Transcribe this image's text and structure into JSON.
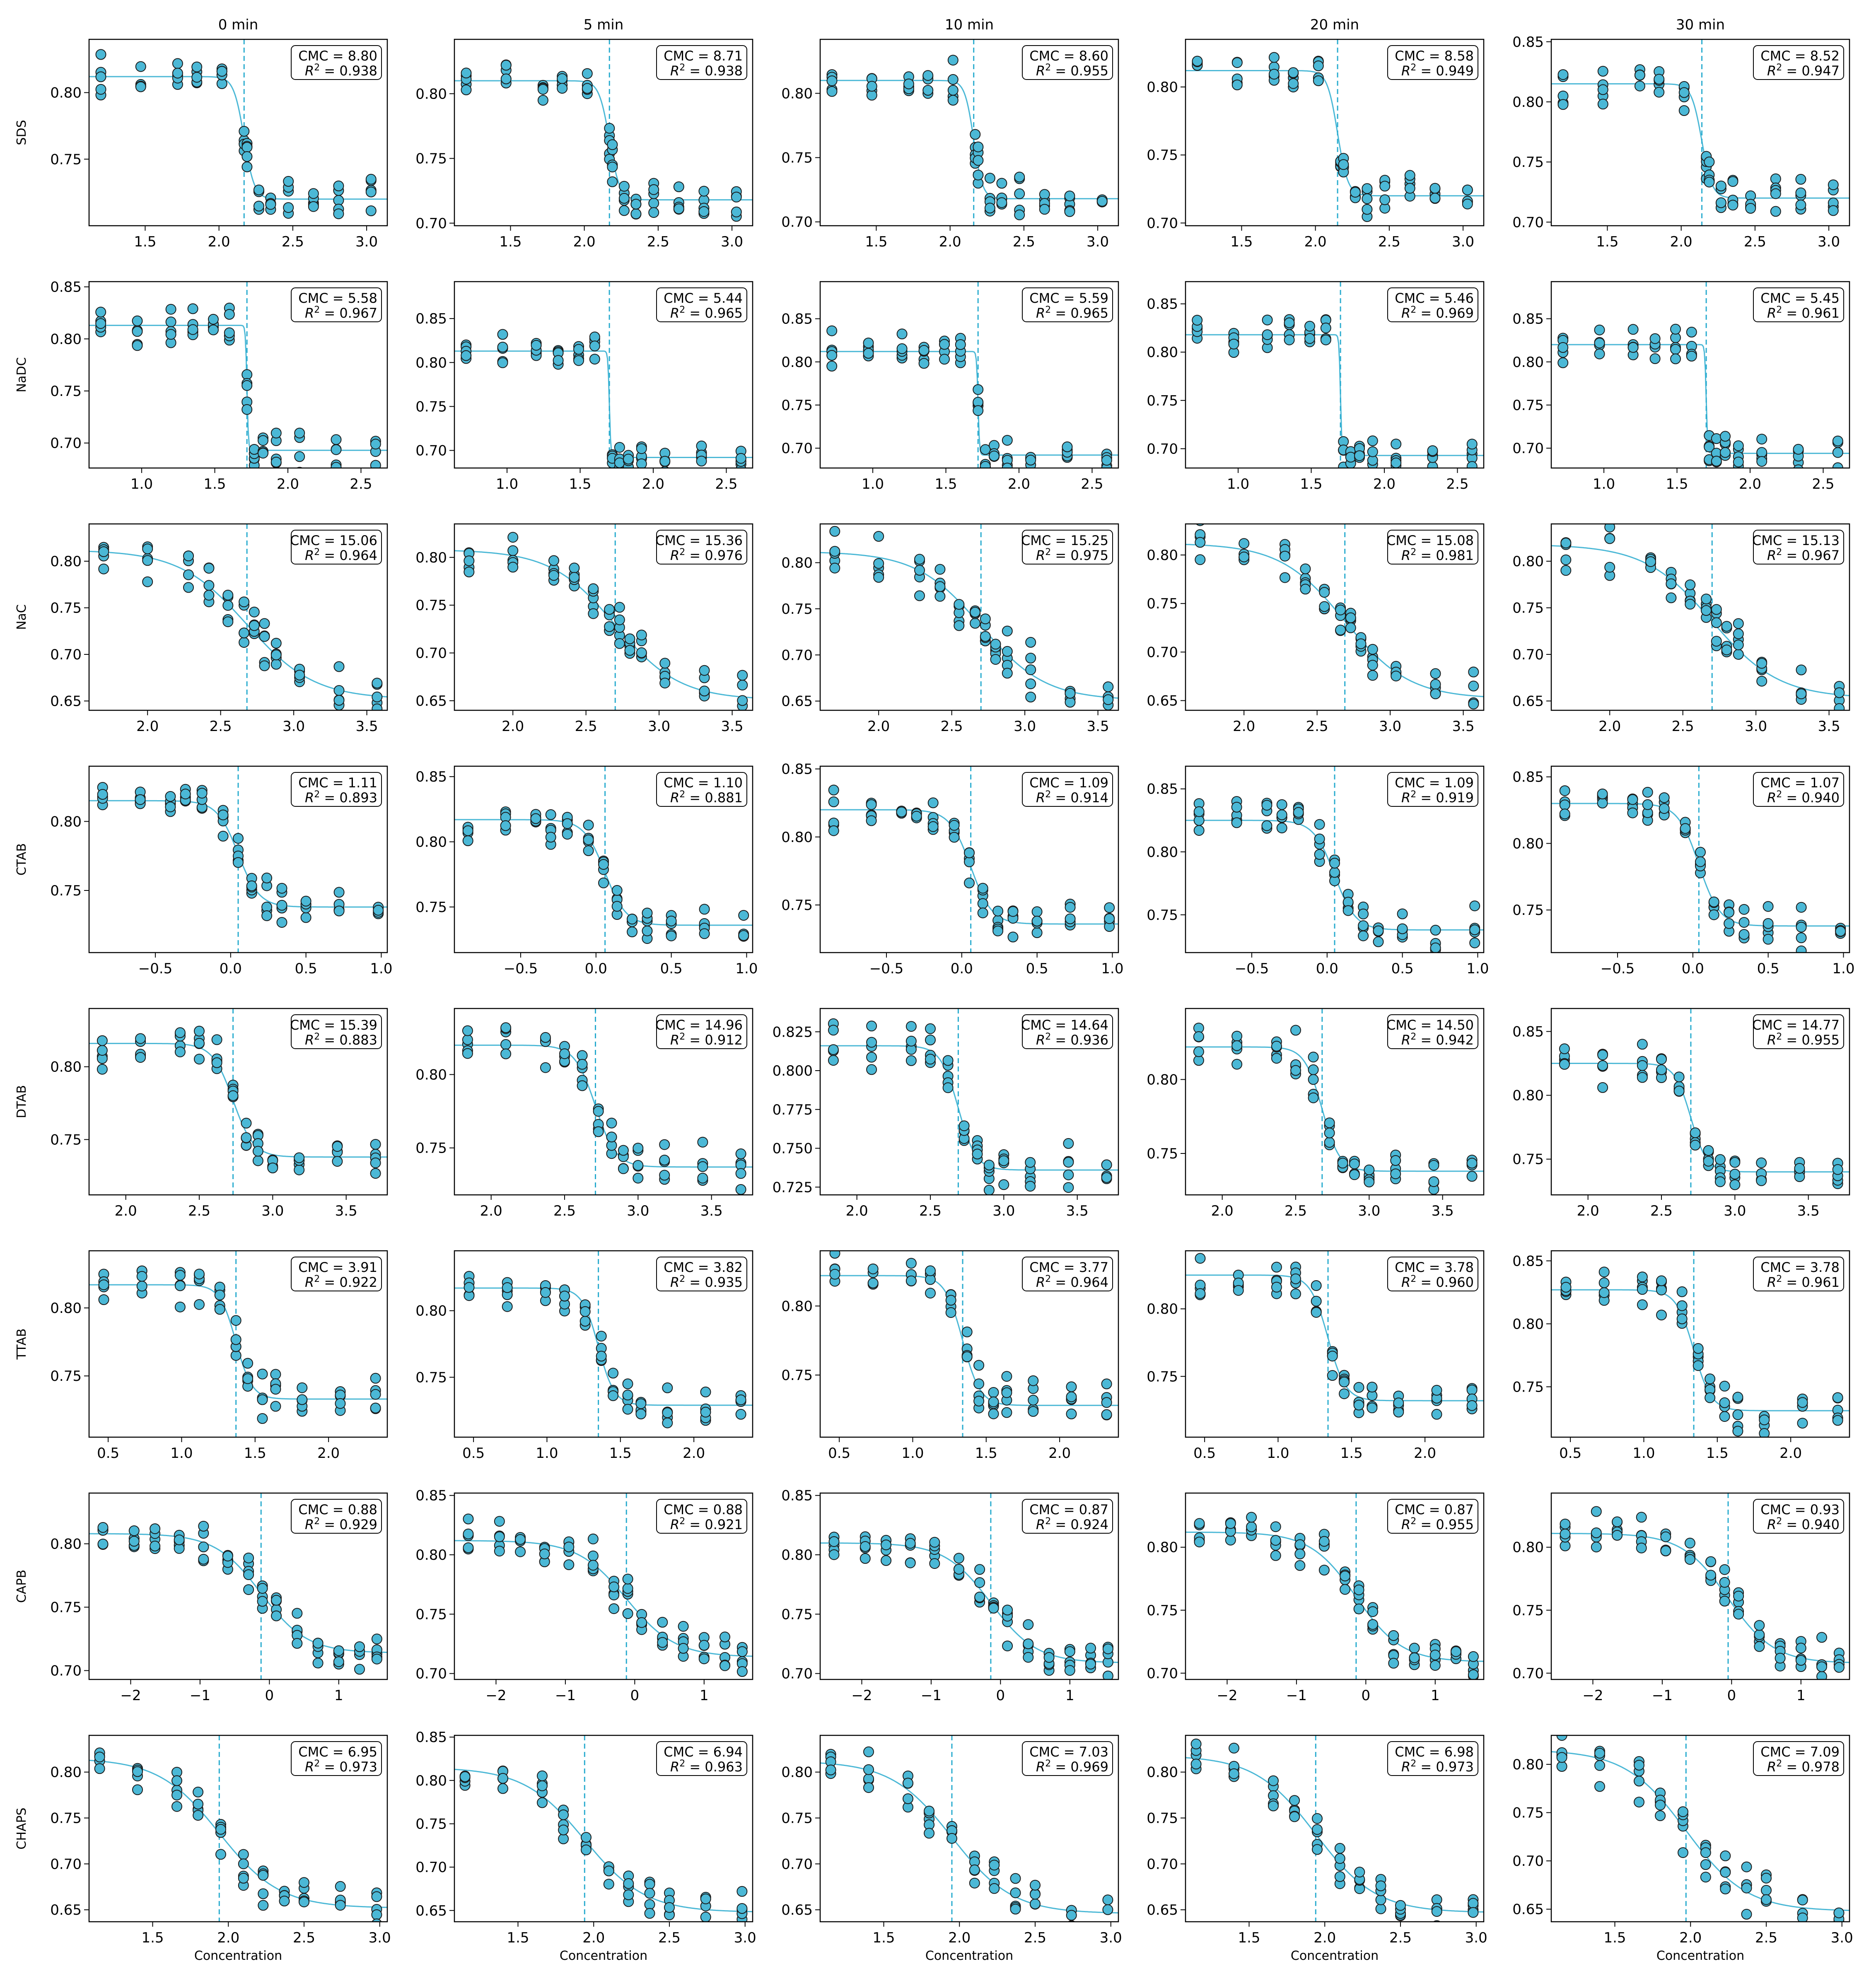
{
  "figure": {
    "col_titles": [
      "0 min",
      "5 min",
      "10 min",
      "20 min",
      "30 min"
    ],
    "row_labels": [
      "SDS",
      "NaDC",
      "NaC",
      "CTAB",
      "DTAB",
      "TTAB",
      "CAPB",
      "CHAPS"
    ],
    "xlabel": "Concentration",
    "colors": {
      "point": "#4bb8d6",
      "edge": "#1a1a1a",
      "fit": "#4bb8d6",
      "cmc_line": "#2aaccf"
    }
  },
  "chart_data": {
    "type": "scatter",
    "rows": [
      {
        "name": "SDS",
        "xlim": [
          1.12,
          3.14
        ],
        "xticks": [
          "1.5",
          "2.0",
          "2.5",
          "3.0"
        ],
        "x": [
          1.2,
          1.47,
          1.72,
          1.85,
          2.02,
          2.17,
          2.19,
          2.27,
          2.35,
          2.47,
          2.64,
          2.81,
          3.03
        ],
        "panels": [
          {
            "cmc": "8.80",
            "r2": "0.938",
            "ylim": [
              0.7,
              0.84
            ],
            "yticks": [
              "0.75",
              "0.80"
            ],
            "hi": 0.812,
            "lo": 0.72,
            "x0": 2.17,
            "w": 0.035
          },
          {
            "cmc": "8.71",
            "r2": "0.938",
            "ylim": [
              0.698,
              0.842
            ],
            "yticks": [
              "0.70",
              "0.75",
              "0.80"
            ],
            "hi": 0.81,
            "lo": 0.718,
            "x0": 2.17,
            "w": 0.035
          },
          {
            "cmc": "8.60",
            "r2": "0.955",
            "ylim": [
              0.697,
              0.842
            ],
            "yticks": [
              "0.70",
              "0.75",
              "0.80"
            ],
            "hi": 0.81,
            "lo": 0.718,
            "x0": 2.16,
            "w": 0.03
          },
          {
            "cmc": "8.58",
            "r2": "0.949",
            "ylim": [
              0.698,
              0.835
            ],
            "yticks": [
              "0.70",
              "0.75",
              "0.80"
            ],
            "hi": 0.812,
            "lo": 0.72,
            "x0": 2.15,
            "w": 0.035
          },
          {
            "cmc": "8.52",
            "r2": "0.947",
            "ylim": [
              0.697,
              0.852
            ],
            "yticks": [
              "0.70",
              "0.75",
              "0.80",
              "0.85"
            ],
            "hi": 0.815,
            "lo": 0.72,
            "x0": 2.14,
            "w": 0.035
          }
        ]
      },
      {
        "name": "NaDC",
        "xlim": [
          0.64,
          2.68
        ],
        "xticks": [
          "1.0",
          "1.5",
          "2.0",
          "2.5"
        ],
        "x": [
          0.72,
          0.97,
          1.2,
          1.35,
          1.49,
          1.6,
          1.72,
          1.77,
          1.83,
          1.92,
          2.08,
          2.33,
          2.6
        ],
        "panels": [
          {
            "cmc": "5.58",
            "r2": "0.967",
            "ylim": [
              0.676,
              0.855
            ],
            "yticks": [
              "0.70",
              "0.75",
              "0.80",
              "0.85"
            ],
            "hi": 0.813,
            "lo": 0.693,
            "x0": 1.72,
            "w": 0.005
          },
          {
            "cmc": "5.44",
            "r2": "0.965",
            "ylim": [
              0.68,
              0.892
            ],
            "yticks": [
              "0.70",
              "0.75",
              "0.80",
              "0.85"
            ],
            "hi": 0.813,
            "lo": 0.692,
            "x0": 1.7,
            "w": 0.005
          },
          {
            "cmc": "5.59",
            "r2": "0.965",
            "ylim": [
              0.677,
              0.893
            ],
            "yticks": [
              "0.70",
              "0.75",
              "0.80",
              "0.85"
            ],
            "hi": 0.812,
            "lo": 0.692,
            "x0": 1.72,
            "w": 0.005
          },
          {
            "cmc": "5.46",
            "r2": "0.969",
            "ylim": [
              0.68,
              0.873
            ],
            "yticks": [
              "0.70",
              "0.75",
              "0.80",
              "0.85"
            ],
            "hi": 0.818,
            "lo": 0.693,
            "x0": 1.7,
            "w": 0.005
          },
          {
            "cmc": "5.45",
            "r2": "0.961",
            "ylim": [
              0.677,
              0.893
            ],
            "yticks": [
              "0.70",
              "0.75",
              "0.80",
              "0.85"
            ],
            "hi": 0.82,
            "lo": 0.694,
            "x0": 1.7,
            "w": 0.005
          }
        ]
      },
      {
        "name": "NaC",
        "xlim": [
          1.6,
          3.64
        ],
        "xticks": [
          "2.0",
          "2.5",
          "3.0",
          "3.5"
        ],
        "x": [
          1.7,
          2.0,
          2.28,
          2.42,
          2.55,
          2.66,
          2.73,
          2.8,
          2.88,
          3.04,
          3.31,
          3.57
        ],
        "panels": [
          {
            "cmc": "15.06",
            "r2": "0.964",
            "ylim": [
              0.64,
              0.84
            ],
            "yticks": [
              "0.65",
              "0.70",
              "0.75",
              "0.80"
            ],
            "hi": 0.812,
            "lo": 0.652,
            "x0": 2.68,
            "w": 0.23
          },
          {
            "cmc": "15.36",
            "r2": "0.976",
            "ylim": [
              0.64,
              0.835
            ],
            "yticks": [
              "0.65",
              "0.70",
              "0.75",
              "0.80"
            ],
            "hi": 0.808,
            "lo": 0.651,
            "x0": 2.7,
            "w": 0.22
          },
          {
            "cmc": "15.25",
            "r2": "0.975",
            "ylim": [
              0.64,
              0.842
            ],
            "yticks": [
              "0.65",
              "0.70",
              "0.75",
              "0.80"
            ],
            "hi": 0.812,
            "lo": 0.651,
            "x0": 2.7,
            "w": 0.22
          },
          {
            "cmc": "15.08",
            "r2": "0.981",
            "ylim": [
              0.64,
              0.832
            ],
            "yticks": [
              "0.65",
              "0.70",
              "0.75",
              "0.80"
            ],
            "hi": 0.812,
            "lo": 0.652,
            "x0": 2.69,
            "w": 0.22
          },
          {
            "cmc": "15.13",
            "r2": "0.967",
            "ylim": [
              0.64,
              0.84
            ],
            "yticks": [
              "0.65",
              "0.70",
              "0.75",
              "0.80"
            ],
            "hi": 0.818,
            "lo": 0.653,
            "x0": 2.7,
            "w": 0.23
          }
        ]
      },
      {
        "name": "CTAB",
        "xlim": [
          -0.94,
          1.04
        ],
        "xticks": [
          "−0.5",
          "0.0",
          "0.5",
          "1.0"
        ],
        "x": [
          -0.85,
          -0.6,
          -0.4,
          -0.3,
          -0.19,
          -0.05,
          0.05,
          0.14,
          0.24,
          0.34,
          0.5,
          0.72,
          0.98
        ],
        "panels": [
          {
            "cmc": "1.11",
            "r2": "0.893",
            "ylim": [
              0.705,
              0.84
            ],
            "yticks": [
              "0.75",
              "0.80"
            ],
            "hi": 0.815,
            "lo": 0.738,
            "x0": 0.05,
            "w": 0.07
          },
          {
            "cmc": "1.10",
            "r2": "0.881",
            "ylim": [
              0.715,
              0.858
            ],
            "yticks": [
              "0.75",
              "0.80",
              "0.85"
            ],
            "hi": 0.817,
            "lo": 0.736,
            "x0": 0.06,
            "w": 0.07
          },
          {
            "cmc": "1.09",
            "r2": "0.914",
            "ylim": [
              0.715,
              0.852
            ],
            "yticks": [
              "0.75",
              "0.80",
              "0.85"
            ],
            "hi": 0.82,
            "lo": 0.736,
            "x0": 0.06,
            "w": 0.07
          },
          {
            "cmc": "1.09",
            "r2": "0.919",
            "ylim": [
              0.72,
              0.868
            ],
            "yticks": [
              "0.75",
              "0.80",
              "0.85"
            ],
            "hi": 0.825,
            "lo": 0.738,
            "x0": 0.05,
            "w": 0.07
          },
          {
            "cmc": "1.07",
            "r2": "0.940",
            "ylim": [
              0.718,
              0.858
            ],
            "yticks": [
              "0.75",
              "0.80",
              "0.85"
            ],
            "hi": 0.83,
            "lo": 0.738,
            "x0": 0.04,
            "w": 0.07
          }
        ]
      },
      {
        "name": "DTAB",
        "xlim": [
          1.75,
          3.78
        ],
        "xticks": [
          "2.0",
          "2.5",
          "3.0",
          "3.5"
        ],
        "x": [
          1.84,
          2.1,
          2.37,
          2.5,
          2.62,
          2.73,
          2.82,
          2.9,
          3.0,
          3.18,
          3.44,
          3.7
        ],
        "panels": [
          {
            "cmc": "15.39",
            "r2": "0.883",
            "ylim": [
              0.712,
              0.84
            ],
            "yticks": [
              "0.75",
              "0.80"
            ],
            "hi": 0.816,
            "lo": 0.738,
            "x0": 2.73,
            "w": 0.07
          },
          {
            "cmc": "14.96",
            "r2": "0.912",
            "ylim": [
              0.718,
              0.845
            ],
            "yticks": [
              "0.75",
              "0.80"
            ],
            "hi": 0.82,
            "lo": 0.737,
            "x0": 2.71,
            "w": 0.07
          },
          {
            "cmc": "14.64",
            "r2": "0.936",
            "ylim": [
              0.72,
              0.84
            ],
            "yticks": [
              "0.725",
              "0.750",
              "0.775",
              "0.800",
              "0.825"
            ],
            "hi": 0.816,
            "lo": 0.736,
            "x0": 2.69,
            "w": 0.06
          },
          {
            "cmc": "14.50",
            "r2": "0.942",
            "ylim": [
              0.722,
              0.848
            ],
            "yticks": [
              "0.75",
              "0.80"
            ],
            "hi": 0.822,
            "lo": 0.738,
            "x0": 2.68,
            "w": 0.06
          },
          {
            "cmc": "14.77",
            "r2": "0.955",
            "ylim": [
              0.722,
              0.868
            ],
            "yticks": [
              "0.75",
              "0.80",
              "0.85"
            ],
            "hi": 0.825,
            "lo": 0.74,
            "x0": 2.7,
            "w": 0.055
          }
        ]
      },
      {
        "name": "TTAB",
        "xlim": [
          0.37,
          2.4
        ],
        "xticks": [
          "0.5",
          "1.0",
          "1.5",
          "2.0"
        ],
        "x": [
          0.47,
          0.73,
          0.99,
          1.12,
          1.26,
          1.37,
          1.45,
          1.55,
          1.64,
          1.82,
          2.08,
          2.32
        ],
        "panels": [
          {
            "cmc": "3.91",
            "r2": "0.922",
            "ylim": [
              0.705,
              0.842
            ],
            "yticks": [
              "0.75",
              "0.80"
            ],
            "hi": 0.817,
            "lo": 0.733,
            "x0": 1.37,
            "w": 0.055
          },
          {
            "cmc": "3.82",
            "r2": "0.935",
            "ylim": [
              0.705,
              0.845
            ],
            "yticks": [
              "0.75",
              "0.80"
            ],
            "hi": 0.817,
            "lo": 0.729,
            "x0": 1.35,
            "w": 0.055
          },
          {
            "cmc": "3.77",
            "r2": "0.964",
            "ylim": [
              0.705,
              0.84
            ],
            "yticks": [
              "0.75",
              "0.80"
            ],
            "hi": 0.822,
            "lo": 0.728,
            "x0": 1.34,
            "w": 0.06
          },
          {
            "cmc": "3.78",
            "r2": "0.960",
            "ylim": [
              0.705,
              0.843
            ],
            "yticks": [
              "0.75",
              "0.80"
            ],
            "hi": 0.825,
            "lo": 0.732,
            "x0": 1.34,
            "w": 0.06
          },
          {
            "cmc": "3.78",
            "r2": "0.961",
            "ylim": [
              0.71,
              0.858
            ],
            "yticks": [
              "0.75",
              "0.80",
              "0.85"
            ],
            "hi": 0.827,
            "lo": 0.731,
            "x0": 1.34,
            "w": 0.06
          }
        ]
      },
      {
        "name": "CAPB",
        "xlim": [
          -2.6,
          1.7
        ],
        "xticks": [
          "−2",
          "−1",
          "0",
          "1"
        ],
        "x": [
          -2.4,
          -1.95,
          -1.65,
          -1.3,
          -0.95,
          -0.6,
          -0.3,
          -0.1,
          0.1,
          0.4,
          0.7,
          1.0,
          1.3,
          1.55
        ],
        "panels": [
          {
            "cmc": "0.88",
            "r2": "0.929",
            "ylim": [
              0.693,
              0.84
            ],
            "yticks": [
              "0.70",
              "0.75",
              "0.80"
            ],
            "hi": 0.808,
            "lo": 0.714,
            "x0": -0.12,
            "w": 0.33
          },
          {
            "cmc": "0.88",
            "r2": "0.921",
            "ylim": [
              0.695,
              0.852
            ],
            "yticks": [
              "0.70",
              "0.75",
              "0.80",
              "0.85"
            ],
            "hi": 0.812,
            "lo": 0.714,
            "x0": -0.12,
            "w": 0.35
          },
          {
            "cmc": "0.87",
            "r2": "0.924",
            "ylim": [
              0.695,
              0.852
            ],
            "yticks": [
              "0.70",
              "0.75",
              "0.80",
              "0.85"
            ],
            "hi": 0.81,
            "lo": 0.709,
            "x0": -0.14,
            "w": 0.33
          },
          {
            "cmc": "0.87",
            "r2": "0.955",
            "ylim": [
              0.695,
              0.843
            ],
            "yticks": [
              "0.70",
              "0.75",
              "0.80"
            ],
            "hi": 0.812,
            "lo": 0.709,
            "x0": -0.14,
            "w": 0.33
          },
          {
            "cmc": "0.93",
            "r2": "0.940",
            "ylim": [
              0.695,
              0.843
            ],
            "yticks": [
              "0.70",
              "0.75",
              "0.80"
            ],
            "hi": 0.811,
            "lo": 0.708,
            "x0": -0.05,
            "w": 0.33
          }
        ]
      },
      {
        "name": "CHAPS",
        "xlim": [
          1.08,
          3.05
        ],
        "xticks": [
          "1.5",
          "2.0",
          "2.5",
          "3.0"
        ],
        "x": [
          1.15,
          1.4,
          1.66,
          1.8,
          1.95,
          2.1,
          2.23,
          2.37,
          2.5,
          2.74,
          2.98
        ],
        "panels": [
          {
            "cmc": "6.95",
            "r2": "0.973",
            "ylim": [
              0.637,
              0.84
            ],
            "yticks": [
              "0.65",
              "0.70",
              "0.75",
              "0.80"
            ],
            "hi": 0.815,
            "lo": 0.652,
            "x0": 1.94,
            "w": 0.2
          },
          {
            "cmc": "6.94",
            "r2": "0.963",
            "ylim": [
              0.637,
              0.852
            ],
            "yticks": [
              "0.65",
              "0.70",
              "0.75",
              "0.80",
              "0.85"
            ],
            "hi": 0.815,
            "lo": 0.648,
            "x0": 1.94,
            "w": 0.2
          },
          {
            "cmc": "7.03",
            "r2": "0.969",
            "ylim": [
              0.637,
              0.84
            ],
            "yticks": [
              "0.65",
              "0.70",
              "0.75",
              "0.80"
            ],
            "hi": 0.812,
            "lo": 0.646,
            "x0": 1.95,
            "w": 0.2
          },
          {
            "cmc": "6.98",
            "r2": "0.973",
            "ylim": [
              0.637,
              0.84
            ],
            "yticks": [
              "0.65",
              "0.70",
              "0.75",
              "0.80"
            ],
            "hi": 0.818,
            "lo": 0.647,
            "x0": 1.94,
            "w": 0.2
          },
          {
            "cmc": "7.09",
            "r2": "0.978",
            "ylim": [
              0.637,
              0.83
            ],
            "yticks": [
              "0.65",
              "0.70",
              "0.75",
              "0.80"
            ],
            "hi": 0.815,
            "lo": 0.648,
            "x0": 1.97,
            "w": 0.2
          }
        ]
      }
    ]
  }
}
